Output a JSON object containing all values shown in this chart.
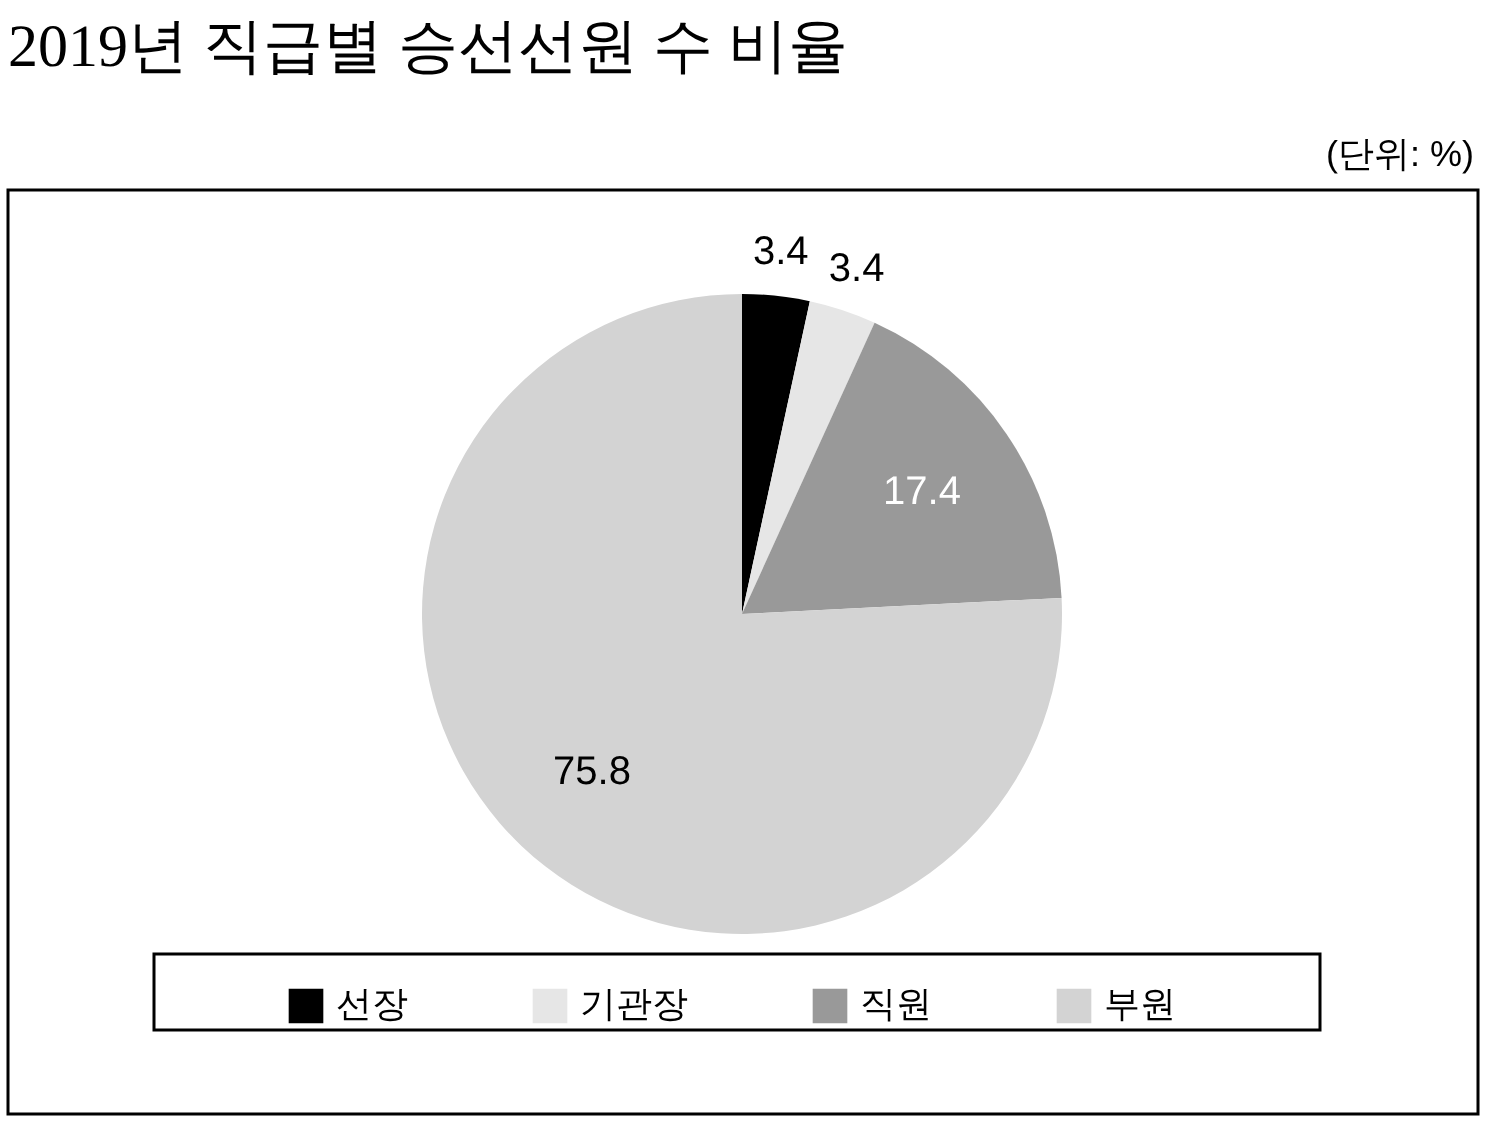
{
  "chart_data": {
    "type": "pie",
    "title": "2019년 직급별 승선선원 수 비율",
    "annotations": [
      "(단위: %)"
    ],
    "categories": [
      "선장",
      "기관장",
      "직원",
      "부원"
    ],
    "values": [
      3.4,
      3.4,
      17.4,
      75.8
    ],
    "colors": [
      "#000000",
      "#e6e6e6",
      "#999999",
      "#d3d3d3"
    ],
    "data_labels": true,
    "legend": "bottom"
  }
}
